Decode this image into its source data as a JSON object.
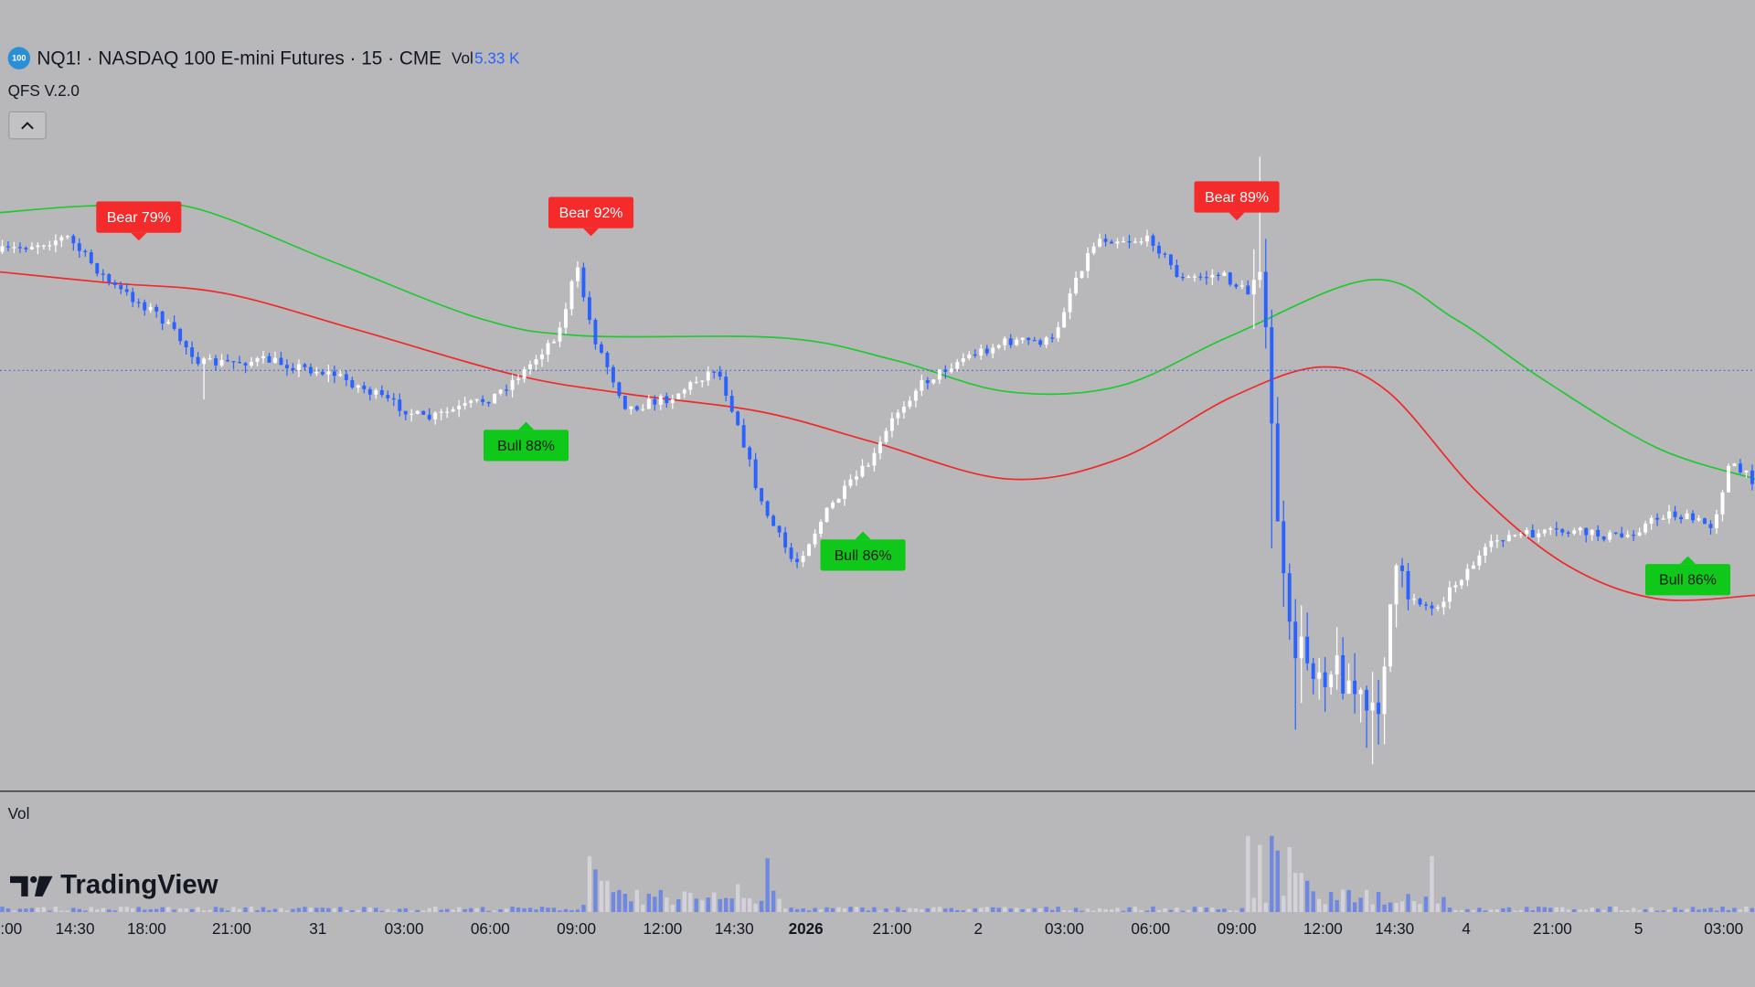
{
  "header": {
    "logo": "100",
    "title": "NQ1! · NASDAQ 100 E-mini Futures · 15 · CME",
    "volume_label": "Vol",
    "volume_value": "5.33 K",
    "indicator": "QFS V.2.0"
  },
  "signals": [
    {
      "label": "Bear 79%"
    },
    {
      "label": "Bear 92%"
    },
    {
      "label": "Bear 89%"
    },
    {
      "label": "Bull 88%"
    },
    {
      "label": "Bull 86%"
    },
    {
      "label": "Bull 86%"
    }
  ],
  "volume_pane": {
    "label": "Vol"
  },
  "time_axis": {
    "labels": [
      ":00",
      "14:30",
      "18:00",
      "21:00",
      "31",
      "03:00",
      "06:00",
      "09:00",
      "12:00",
      "14:30",
      "2026",
      "21:00",
      "2",
      "03:00",
      "06:00",
      "09:00",
      "12:00",
      "14:30",
      "4",
      "21:00",
      "5",
      "03:00"
    ]
  },
  "watermark": "TradingView"
}
